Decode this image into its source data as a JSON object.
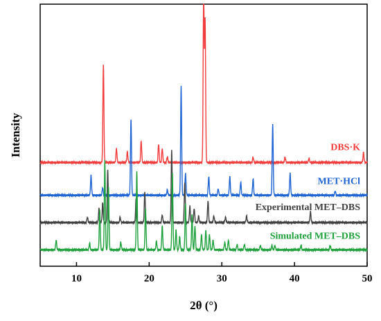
{
  "chart_data": {
    "type": "line",
    "title": "",
    "xlabel": "2θ (°)",
    "ylabel": "Intensity",
    "xlim": [
      5,
      50
    ],
    "xticks": [
      10,
      20,
      30,
      40,
      50
    ],
    "yticks_shown": false,
    "grid": false,
    "legend": "inline labels at right of each trace",
    "series": [
      {
        "name": "DBS·K",
        "color": "#f03c3c",
        "baseline": 0.95,
        "peaks": [
          [
            13.7,
            0.9
          ],
          [
            15.5,
            0.13
          ],
          [
            17.0,
            0.1
          ],
          [
            18.9,
            0.2
          ],
          [
            21.3,
            0.17
          ],
          [
            21.8,
            0.13
          ],
          [
            22.5,
            0.05
          ],
          [
            27.5,
            1.6
          ],
          [
            27.7,
            1.3
          ],
          [
            34.3,
            0.05
          ],
          [
            38.7,
            0.05
          ],
          [
            42.0,
            0.04
          ],
          [
            49.5,
            0.09
          ]
        ]
      },
      {
        "name": "MET·HCl",
        "color": "#1e64d2",
        "baseline": 0.65,
        "peaks": [
          [
            12.0,
            0.18
          ],
          [
            13.6,
            0.07
          ],
          [
            17.5,
            0.7
          ],
          [
            22.5,
            0.05
          ],
          [
            24.4,
            1.0
          ],
          [
            25.0,
            0.2
          ],
          [
            28.2,
            0.17
          ],
          [
            29.5,
            0.06
          ],
          [
            31.1,
            0.17
          ],
          [
            32.6,
            0.12
          ],
          [
            34.3,
            0.15
          ],
          [
            37.0,
            0.65
          ],
          [
            39.4,
            0.2
          ],
          [
            45.6,
            0.04
          ]
        ]
      },
      {
        "name": "Experimental MET–DBS",
        "color": "#404040",
        "baseline": 0.4,
        "peaks": [
          [
            11.5,
            0.05
          ],
          [
            13.1,
            0.13
          ],
          [
            13.6,
            0.18
          ],
          [
            14.3,
            0.48
          ],
          [
            16.0,
            0.05
          ],
          [
            18.2,
            0.22
          ],
          [
            19.4,
            0.28
          ],
          [
            21.8,
            0.07
          ],
          [
            23.1,
            0.66
          ],
          [
            24.9,
            0.37
          ],
          [
            25.6,
            0.15
          ],
          [
            26.2,
            0.13
          ],
          [
            26.8,
            0.06
          ],
          [
            28.1,
            0.2
          ],
          [
            28.9,
            0.06
          ],
          [
            30.5,
            0.05
          ],
          [
            33.4,
            0.06
          ],
          [
            42.2,
            0.1
          ]
        ]
      },
      {
        "name": "Simulated MET–DBS",
        "color": "#1ea03c",
        "baseline": 0.15,
        "peaks": [
          [
            7.2,
            0.09
          ],
          [
            11.8,
            0.06
          ],
          [
            13.2,
            0.36
          ],
          [
            13.9,
            0.82
          ],
          [
            14.4,
            0.58
          ],
          [
            16.1,
            0.07
          ],
          [
            18.3,
            0.72
          ],
          [
            19.5,
            0.38
          ],
          [
            21.0,
            0.08
          ],
          [
            21.8,
            0.22
          ],
          [
            23.2,
            0.7
          ],
          [
            23.7,
            0.18
          ],
          [
            24.2,
            0.12
          ],
          [
            25.0,
            0.42
          ],
          [
            25.9,
            0.32
          ],
          [
            26.3,
            0.22
          ],
          [
            27.2,
            0.14
          ],
          [
            27.8,
            0.18
          ],
          [
            28.3,
            0.14
          ],
          [
            28.8,
            0.09
          ],
          [
            30.4,
            0.07
          ],
          [
            30.9,
            0.09
          ],
          [
            32.1,
            0.05
          ],
          [
            33.1,
            0.05
          ],
          [
            35.3,
            0.04
          ],
          [
            36.9,
            0.04
          ],
          [
            37.3,
            0.04
          ],
          [
            40.9,
            0.04
          ],
          [
            44.9,
            0.04
          ]
        ]
      }
    ]
  }
}
